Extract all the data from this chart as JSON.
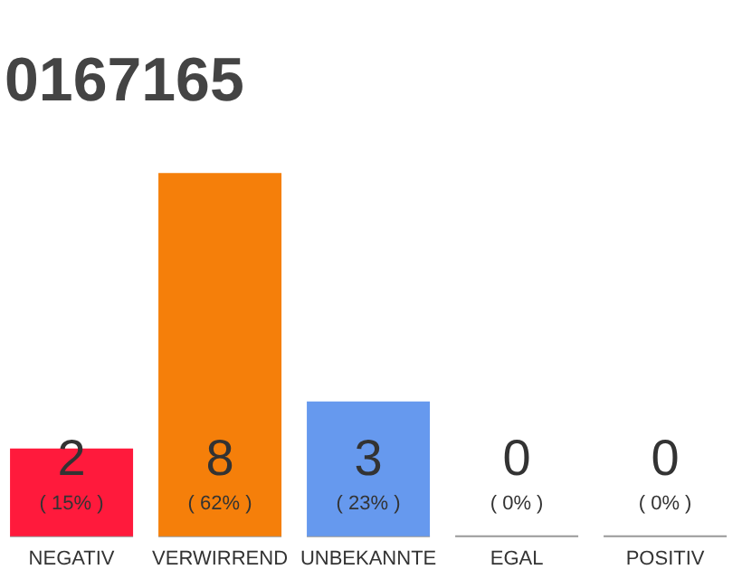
{
  "chart_data": {
    "type": "bar",
    "title": "0167165",
    "categories": [
      "NEGATIV",
      "VERWIRREND",
      "UNBEKANNTE",
      "EGAL",
      "POSITIV"
    ],
    "values": [
      15,
      62,
      23,
      0,
      0
    ],
    "annotations": [
      "2",
      "8",
      "3",
      "0",
      "0"
    ],
    "colors": [
      "#ff1a3c",
      "#f57f0a",
      "#6699ee",
      "#cccccc",
      "#cccccc"
    ],
    "value_labels": [
      "( 15% )",
      "( 62% )",
      "( 23% )",
      "( 0% )",
      "( 0% )"
    ]
  }
}
